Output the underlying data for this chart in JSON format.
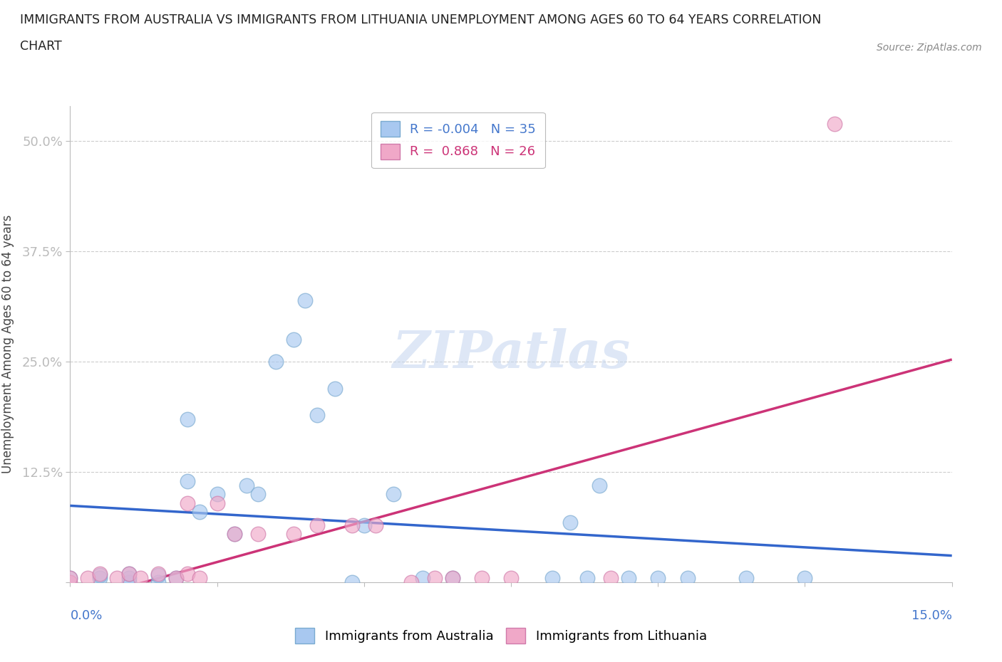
{
  "title_line1": "IMMIGRANTS FROM AUSTRALIA VS IMMIGRANTS FROM LITHUANIA UNEMPLOYMENT AMONG AGES 60 TO 64 YEARS CORRELATION",
  "title_line2": "CHART",
  "source": "Source: ZipAtlas.com",
  "ylabel": "Unemployment Among Ages 60 to 64 years",
  "y_tick_labels": [
    "",
    "12.5%",
    "25.0%",
    "37.5%",
    "50.0%"
  ],
  "y_ticks": [
    0.0,
    0.125,
    0.25,
    0.375,
    0.5
  ],
  "x_ticks": [
    0.0,
    0.025,
    0.05,
    0.075,
    0.1,
    0.125,
    0.15
  ],
  "xlim": [
    0.0,
    0.15
  ],
  "ylim": [
    0.0,
    0.54
  ],
  "legend_R_australia": "-0.004",
  "legend_N_australia": "35",
  "legend_R_lithuania": " 0.868",
  "legend_N_lithuania": "26",
  "color_australia": "#a8c8f0",
  "color_australia_edge": "#7aaad0",
  "color_lithuania": "#f0a8c8",
  "color_lithuania_edge": "#d07aaa",
  "color_australia_line": "#3366cc",
  "color_lithuania_line": "#cc3377",
  "watermark": "ZIPatlas",
  "aus_label": "Immigrants from Australia",
  "lith_label": "Immigrants from Lithuania",
  "australia_x": [
    0.0,
    0.005,
    0.005,
    0.01,
    0.01,
    0.01,
    0.015,
    0.015,
    0.018,
    0.02,
    0.02,
    0.022,
    0.025,
    0.028,
    0.03,
    0.032,
    0.035,
    0.038,
    0.04,
    0.042,
    0.045,
    0.048,
    0.05,
    0.055,
    0.06,
    0.065,
    0.082,
    0.085,
    0.088,
    0.09,
    0.095,
    0.1,
    0.105,
    0.115,
    0.125
  ],
  "australia_y": [
    0.005,
    0.005,
    0.008,
    0.0,
    0.005,
    0.01,
    0.0,
    0.008,
    0.005,
    0.115,
    0.185,
    0.08,
    0.1,
    0.055,
    0.11,
    0.1,
    0.25,
    0.275,
    0.32,
    0.19,
    0.22,
    0.0,
    0.065,
    0.1,
    0.005,
    0.005,
    0.005,
    0.068,
    0.005,
    0.11,
    0.005,
    0.005,
    0.005,
    0.005,
    0.005
  ],
  "lithuania_x": [
    0.0,
    0.0,
    0.003,
    0.005,
    0.008,
    0.01,
    0.012,
    0.015,
    0.018,
    0.02,
    0.02,
    0.022,
    0.025,
    0.028,
    0.032,
    0.038,
    0.042,
    0.048,
    0.052,
    0.058,
    0.062,
    0.065,
    0.07,
    0.075,
    0.092,
    0.13
  ],
  "lithuania_y": [
    0.0,
    0.005,
    0.005,
    0.01,
    0.005,
    0.01,
    0.005,
    0.01,
    0.005,
    0.01,
    0.09,
    0.005,
    0.09,
    0.055,
    0.055,
    0.055,
    0.065,
    0.065,
    0.065,
    0.0,
    0.005,
    0.005,
    0.005,
    0.005,
    0.005,
    0.52
  ],
  "scatter_size": 220,
  "scatter_alpha": 0.65
}
